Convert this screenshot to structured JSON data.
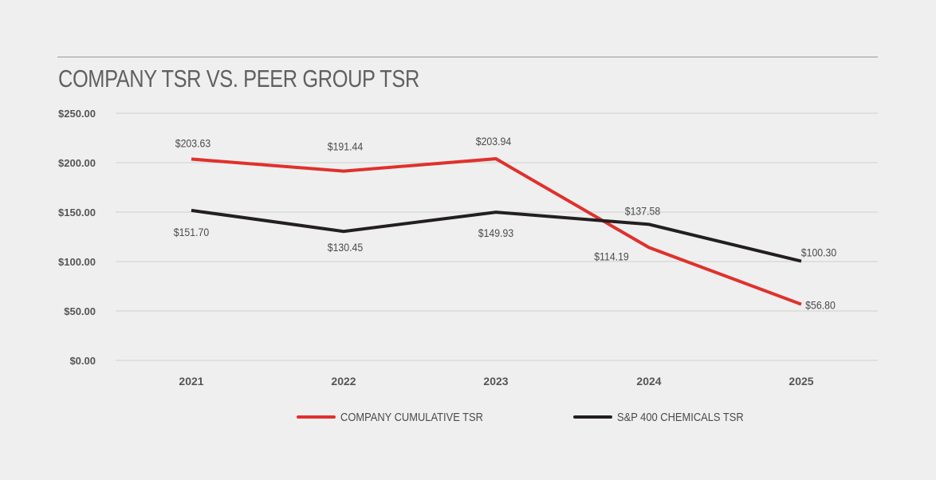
{
  "chart_data": {
    "type": "line",
    "title": "COMPANY TSR VS. PEER GROUP TSR",
    "xlabel": "",
    "ylabel": "",
    "categories": [
      "2021",
      "2022",
      "2023",
      "2024",
      "2025"
    ],
    "y_ticks": [
      "$0.00",
      "$50.00",
      "$100.00",
      "$150.00",
      "$200.00",
      "$250.00"
    ],
    "ylim": [
      0,
      250
    ],
    "grid": true,
    "legend_position": "bottom",
    "series": [
      {
        "name": "COMPANY CUMULATIVE TSR",
        "color": "#e0312b",
        "values": [
          203.63,
          191.44,
          203.94,
          114.19,
          56.8
        ],
        "labels": [
          "$203.63",
          "$191.44",
          "$203.94",
          "$114.19",
          "$56.80"
        ]
      },
      {
        "name": "S&P 400 CHEMICALS TSR",
        "color": "#231f20",
        "values": [
          151.7,
          130.45,
          149.93,
          137.58,
          100.3
        ],
        "labels": [
          "$151.70",
          "$130.45",
          "$149.93",
          "$137.58",
          "$100.30"
        ]
      }
    ]
  }
}
